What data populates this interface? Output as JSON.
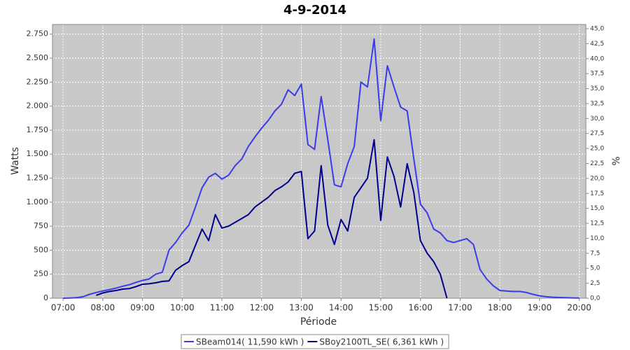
{
  "chart_data": {
    "type": "line",
    "title": "4-9-2014",
    "x_label": "Période",
    "y_label": "Watts",
    "y2_label": "%",
    "x": [
      420,
      430,
      440,
      450,
      460,
      470,
      480,
      490,
      500,
      510,
      520,
      530,
      540,
      550,
      560,
      570,
      580,
      590,
      600,
      610,
      620,
      630,
      640,
      650,
      660,
      670,
      680,
      690,
      700,
      710,
      720,
      730,
      740,
      750,
      760,
      770,
      780,
      790,
      800,
      810,
      820,
      830,
      840,
      850,
      860,
      870,
      880,
      890,
      900,
      910,
      920,
      930,
      940,
      950,
      960,
      970,
      980,
      990,
      1000,
      1010,
      1020,
      1030,
      1040,
      1050,
      1060,
      1070,
      1080,
      1090,
      1100,
      1110,
      1120,
      1130,
      1140,
      1150,
      1160,
      1170,
      1180,
      1190,
      1200
    ],
    "series": [
      {
        "name": "SBeam014( 11,590 kWh )",
        "color": "#3a3aee",
        "values": [
          0,
          2,
          5,
          15,
          40,
          60,
          75,
          90,
          105,
          125,
          140,
          165,
          185,
          200,
          250,
          270,
          500,
          580,
          680,
          760,
          950,
          1150,
          1260,
          1300,
          1240,
          1280,
          1380,
          1450,
          1580,
          1680,
          1770,
          1850,
          1950,
          2020,
          2170,
          2110,
          2230,
          1600,
          1550,
          2100,
          1650,
          1180,
          1160,
          1400,
          1580,
          2250,
          2200,
          2700,
          1850,
          2420,
          2200,
          1990,
          1950,
          1450,
          980,
          890,
          720,
          680,
          600,
          580,
          600,
          620,
          560,
          300,
          200,
          130,
          80,
          75,
          70,
          70,
          60,
          40,
          25,
          15,
          10,
          7,
          5,
          3,
          2
        ]
      },
      {
        "name": "SBoy2100TL_SE( 6,361 kWh )",
        "color": "#00008f",
        "values": [
          null,
          null,
          null,
          null,
          null,
          30,
          55,
          70,
          80,
          95,
          100,
          120,
          145,
          150,
          160,
          175,
          180,
          290,
          340,
          380,
          550,
          720,
          600,
          870,
          730,
          750,
          790,
          830,
          870,
          950,
          1000,
          1050,
          1120,
          1160,
          1210,
          1300,
          1320,
          620,
          700,
          1380,
          760,
          560,
          820,
          700,
          1050,
          1150,
          1250,
          1650,
          810,
          1470,
          1270,
          950,
          1400,
          1100,
          600,
          470,
          380,
          250,
          0,
          null,
          null,
          null,
          null,
          null,
          null,
          null,
          null,
          null,
          null,
          null,
          null,
          null,
          null,
          null,
          null,
          null,
          null,
          null,
          null
        ]
      }
    ],
    "xlim": [
      404,
      1210
    ],
    "xticks": [
      {
        "value": 420,
        "label": "07:00"
      },
      {
        "value": 480,
        "label": "08:00"
      },
      {
        "value": 540,
        "label": "09:00"
      },
      {
        "value": 600,
        "label": "10:00"
      },
      {
        "value": 660,
        "label": "11:00"
      },
      {
        "value": 720,
        "label": "12:00"
      },
      {
        "value": 780,
        "label": "13:00"
      },
      {
        "value": 840,
        "label": "14:00"
      },
      {
        "value": 900,
        "label": "15:00"
      },
      {
        "value": 960,
        "label": "16:00"
      },
      {
        "value": 1020,
        "label": "17:00"
      },
      {
        "value": 1080,
        "label": "18:00"
      },
      {
        "value": 1140,
        "label": "19:00"
      },
      {
        "value": 1200,
        "label": "20:00"
      }
    ],
    "ylim": [
      0,
      2850
    ],
    "yticks": [
      0,
      250,
      500,
      750,
      {
        "value": 1000,
        "label": "1.000"
      },
      {
        "value": 1250,
        "label": "1.250"
      },
      {
        "value": 1500,
        "label": "1.500"
      },
      {
        "value": 1750,
        "label": "1.750"
      },
      {
        "value": 2000,
        "label": "2.000"
      },
      {
        "value": 2250,
        "label": "2.250"
      },
      {
        "value": 2500,
        "label": "2.500"
      },
      {
        "value": 2750,
        "label": "2.750"
      }
    ],
    "y2lim": [
      0,
      45.7
    ],
    "y2ticks": [
      {
        "value": 0,
        "label": "0,0"
      },
      {
        "value": 2.5,
        "label": "2,5"
      },
      {
        "value": 5,
        "label": "5,0"
      },
      {
        "value": 7.5,
        "label": "7,5"
      },
      {
        "value": 10,
        "label": "10,0"
      },
      {
        "value": 12.5,
        "label": "12,5"
      },
      {
        "value": 15,
        "label": "15,0"
      },
      {
        "value": 17.5,
        "label": "17,5"
      },
      {
        "value": 20,
        "label": "20,0"
      },
      {
        "value": 22.5,
        "label": "22,5"
      },
      {
        "value": 25,
        "label": "25,0"
      },
      {
        "value": 27.5,
        "label": "27,5"
      },
      {
        "value": 30,
        "label": "30,0"
      },
      {
        "value": 32.5,
        "label": "32,5"
      },
      {
        "value": 35,
        "label": "35,0"
      },
      {
        "value": 37.5,
        "label": "37,5"
      },
      {
        "value": 40,
        "label": "40,0"
      },
      {
        "value": 42.5,
        "label": "42,5"
      },
      {
        "value": 45,
        "label": "45,0"
      }
    ],
    "grid": true,
    "legend": "bottom",
    "background": "#c8c8c8"
  }
}
